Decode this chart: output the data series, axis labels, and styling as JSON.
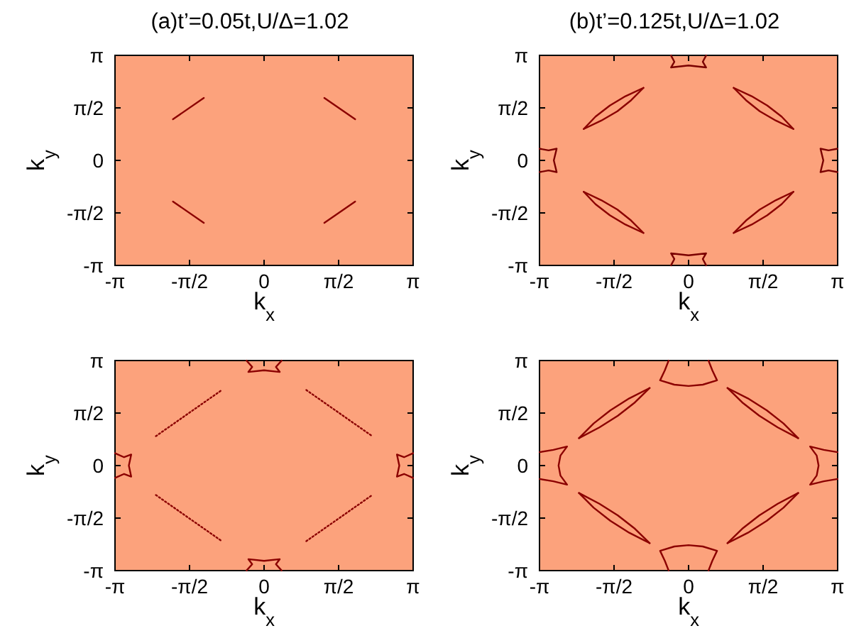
{
  "chart_data": [
    {
      "type": "line",
      "title": "(a)t’=0.05t,U/Δ=1.02",
      "xlabel": "k$_{x}$",
      "ylabel": "k$_{y}$",
      "xlim": [
        -3.1416,
        3.1416
      ],
      "ylim": [
        -3.1416,
        3.1416
      ],
      "xticks": [
        {
          "value": -3.1416,
          "label": "-π"
        },
        {
          "value": -1.5708,
          "label": "-π/2"
        },
        {
          "value": 0,
          "label": "0"
        },
        {
          "value": 1.5708,
          "label": "π/2"
        },
        {
          "value": 3.1416,
          "label": "π"
        }
      ],
      "yticks": [
        {
          "value": -3.1416,
          "label": "-π"
        },
        {
          "value": -1.5708,
          "label": "-π/2"
        },
        {
          "value": 0,
          "label": "0"
        },
        {
          "value": 1.5708,
          "label": "π/2"
        },
        {
          "value": 3.1416,
          "label": "π"
        }
      ],
      "series": [
        {
          "color": "#8b0000",
          "x": [
            -1.92,
            -1.27
          ],
          "values": [
            1.23,
            1.87
          ]
        },
        {
          "color": "#8b0000",
          "x": [
            1.27,
            1.92
          ],
          "values": [
            1.87,
            1.23
          ]
        },
        {
          "color": "#8b0000",
          "x": [
            -1.92,
            -1.27
          ],
          "values": [
            -1.23,
            -1.87
          ]
        },
        {
          "color": "#8b0000",
          "x": [
            1.27,
            1.92
          ],
          "values": [
            -1.87,
            -1.23
          ]
        }
      ]
    },
    {
      "type": "line",
      "title": "(b)t’=0.125t,U/Δ=1.02",
      "xlabel": "k$_{x}$",
      "ylabel": "k$_{y}$",
      "xlim": [
        -3.1416,
        3.1416
      ],
      "ylim": [
        -3.1416,
        3.1416
      ],
      "xticks": [
        {
          "value": -3.1416,
          "label": "-π"
        },
        {
          "value": -1.5708,
          "label": "-π/2"
        },
        {
          "value": 0,
          "label": "0"
        },
        {
          "value": 1.5708,
          "label": "π/2"
        },
        {
          "value": 3.1416,
          "label": "π"
        }
      ],
      "yticks": [
        {
          "value": -3.1416,
          "label": "-π"
        },
        {
          "value": -1.5708,
          "label": "-π/2"
        },
        {
          "value": 0,
          "label": "0"
        },
        {
          "value": 1.5708,
          "label": "π/2"
        },
        {
          "value": 3.1416,
          "label": "π"
        }
      ],
      "series": [
        {
          "color": "#8b0000",
          "x": [
            -2.21,
            -1.96,
            -1.66,
            -1.33,
            -0.95
          ],
          "values": [
            0.94,
            1.31,
            1.64,
            1.92,
            2.17
          ]
        },
        {
          "color": "#8b0000",
          "x": [
            -2.21,
            -1.84,
            -1.5,
            -1.21,
            -0.95
          ],
          "values": [
            0.94,
            1.19,
            1.47,
            1.8,
            2.17
          ]
        },
        {
          "color": "#8b0000",
          "x": [
            0.95,
            1.33,
            1.66,
            1.96,
            2.21
          ],
          "values": [
            2.17,
            1.92,
            1.64,
            1.31,
            0.94
          ]
        },
        {
          "color": "#8b0000",
          "x": [
            0.95,
            1.21,
            1.5,
            1.84,
            2.21
          ],
          "values": [
            2.17,
            1.8,
            1.47,
            1.19,
            0.94
          ]
        },
        {
          "color": "#8b0000",
          "x": [
            -2.21,
            -1.96,
            -1.66,
            -1.33,
            -0.95
          ],
          "values": [
            -0.94,
            -1.31,
            -1.64,
            -1.92,
            -2.17
          ]
        },
        {
          "color": "#8b0000",
          "x": [
            -2.21,
            -1.84,
            -1.5,
            -1.21,
            -0.95
          ],
          "values": [
            -0.94,
            -1.19,
            -1.47,
            -1.8,
            -2.17
          ]
        },
        {
          "color": "#8b0000",
          "x": [
            0.95,
            1.33,
            1.66,
            1.96,
            2.21
          ],
          "values": [
            -2.17,
            -1.92,
            -1.64,
            -1.31,
            -0.94
          ]
        },
        {
          "color": "#8b0000",
          "x": [
            0.95,
            1.21,
            1.5,
            1.84,
            2.21
          ],
          "values": [
            -2.17,
            -1.8,
            -1.47,
            -1.19,
            -0.94
          ]
        },
        {
          "color": "#7a0000",
          "x": [
            -0.37,
            -0.3,
            -0.37,
            0,
            0.37,
            0.3,
            0.37
          ],
          "values": [
            3.14,
            2.95,
            2.78,
            2.84,
            2.78,
            2.95,
            3.14
          ]
        },
        {
          "color": "#7a0000",
          "x": [
            -0.37,
            -0.3,
            -0.37,
            0,
            0.37,
            0.3,
            0.37
          ],
          "values": [
            -3.14,
            -2.95,
            -2.78,
            -2.84,
            -2.78,
            -2.95,
            -3.14
          ]
        },
        {
          "color": "#7a0000",
          "x": [
            -3.14,
            -2.95,
            -2.78,
            -2.84,
            -2.78,
            -2.95,
            -3.14
          ],
          "values": [
            0.35,
            0.3,
            0.35,
            0,
            -0.35,
            -0.3,
            -0.35
          ]
        },
        {
          "color": "#7a0000",
          "x": [
            3.14,
            2.95,
            2.78,
            2.84,
            2.78,
            2.95,
            3.14
          ],
          "values": [
            0.35,
            0.3,
            0.35,
            0,
            -0.35,
            -0.3,
            -0.35
          ]
        }
      ]
    },
    {
      "type": "line",
      "xlabel": "k$_{x}$",
      "ylabel": "k$_{y}$",
      "xlim": [
        -3.1416,
        3.1416
      ],
      "ylim": [
        -3.1416,
        3.1416
      ],
      "xticks": [
        {
          "value": -3.1416,
          "label": "-π"
        },
        {
          "value": -1.5708,
          "label": "-π/2"
        },
        {
          "value": 0,
          "label": "0"
        },
        {
          "value": 1.5708,
          "label": "π/2"
        },
        {
          "value": 3.1416,
          "label": "π"
        }
      ],
      "yticks": [
        {
          "value": -3.1416,
          "label": "-π"
        },
        {
          "value": -1.5708,
          "label": "-π/2"
        },
        {
          "value": 0,
          "label": "0"
        },
        {
          "value": 1.5708,
          "label": "π/2"
        },
        {
          "value": 3.1416,
          "label": "π"
        }
      ],
      "series": [
        {
          "color": "#8b0000",
          "line_style": "dotted",
          "x": [
            -2.28,
            -0.89
          ],
          "values": [
            0.88,
            2.26
          ]
        },
        {
          "color": "#8b0000",
          "line_style": "dotted",
          "x": [
            0.89,
            2.28
          ],
          "values": [
            2.26,
            0.88
          ]
        },
        {
          "color": "#8b0000",
          "line_style": "dotted",
          "x": [
            -2.28,
            -0.89
          ],
          "values": [
            -0.88,
            -2.26
          ]
        },
        {
          "color": "#8b0000",
          "line_style": "dotted",
          "x": [
            0.89,
            2.28
          ],
          "values": [
            -2.26,
            -0.88
          ]
        },
        {
          "color": "#8b0000",
          "x": [
            -0.37,
            -0.25,
            -0.33,
            0,
            0.33,
            0.25,
            0.37
          ],
          "values": [
            3.14,
            2.95,
            2.8,
            2.85,
            2.8,
            2.95,
            3.14
          ]
        },
        {
          "color": "#8b0000",
          "x": [
            -0.37,
            -0.25,
            -0.33,
            0,
            0.33,
            0.25,
            0.37
          ],
          "values": [
            -3.14,
            -2.95,
            -2.8,
            -2.85,
            -2.8,
            -2.95,
            -3.14
          ]
        },
        {
          "color": "#8b0000",
          "x": [
            -3.14,
            -2.95,
            -2.8,
            -2.85,
            -2.8,
            -2.95,
            -3.14
          ],
          "values": [
            0.37,
            0.25,
            0.33,
            0,
            -0.33,
            -0.25,
            -0.37
          ]
        },
        {
          "color": "#8b0000",
          "x": [
            3.14,
            2.95,
            2.8,
            2.85,
            2.8,
            2.95,
            3.14
          ],
          "values": [
            0.37,
            0.25,
            0.33,
            0,
            -0.33,
            -0.25,
            -0.37
          ]
        }
      ]
    },
    {
      "type": "line",
      "xlabel": "k$_{x}$",
      "ylabel": "k$_{y}$",
      "xlim": [
        -3.1416,
        3.1416
      ],
      "ylim": [
        -3.1416,
        3.1416
      ],
      "xticks": [
        {
          "value": -3.1416,
          "label": "-π"
        },
        {
          "value": -1.5708,
          "label": "-π/2"
        },
        {
          "value": 0,
          "label": "0"
        },
        {
          "value": 1.5708,
          "label": "π/2"
        },
        {
          "value": 3.1416,
          "label": "π"
        }
      ],
      "yticks": [
        {
          "value": -3.1416,
          "label": "-π"
        },
        {
          "value": -1.5708,
          "label": "-π/2"
        },
        {
          "value": 0,
          "label": "0"
        },
        {
          "value": 1.5708,
          "label": "π/2"
        },
        {
          "value": 3.1416,
          "label": "π"
        }
      ],
      "series": [
        {
          "color": "#8b0000",
          "x": [
            -2.31,
            -2.0,
            -1.65,
            -1.25,
            -0.82
          ],
          "values": [
            0.82,
            1.26,
            1.65,
            2.01,
            2.32
          ]
        },
        {
          "color": "#8b0000",
          "x": [
            -2.31,
            -1.88,
            -1.49,
            -1.13,
            -0.82
          ],
          "values": [
            0.82,
            1.14,
            1.49,
            1.89,
            2.32
          ]
        },
        {
          "color": "#8b0000",
          "x": [
            0.82,
            1.25,
            1.65,
            2.0,
            2.31
          ],
          "values": [
            2.32,
            2.01,
            1.65,
            1.26,
            0.82
          ]
        },
        {
          "color": "#8b0000",
          "x": [
            0.82,
            1.13,
            1.49,
            1.88,
            2.31
          ],
          "values": [
            2.32,
            1.89,
            1.49,
            1.14,
            0.82
          ]
        },
        {
          "color": "#8b0000",
          "x": [
            -2.31,
            -2.0,
            -1.65,
            -1.25,
            -0.82
          ],
          "values": [
            -0.82,
            -1.26,
            -1.65,
            -2.01,
            -2.32
          ]
        },
        {
          "color": "#8b0000",
          "x": [
            -2.31,
            -1.88,
            -1.49,
            -1.13,
            -0.82
          ],
          "values": [
            -0.82,
            -1.14,
            -1.49,
            -1.89,
            -2.32
          ]
        },
        {
          "color": "#8b0000",
          "x": [
            0.82,
            1.25,
            1.65,
            2.0,
            2.31
          ],
          "values": [
            -2.32,
            -2.01,
            -1.65,
            -1.26,
            -0.82
          ]
        },
        {
          "color": "#8b0000",
          "x": [
            0.82,
            1.13,
            1.49,
            1.88,
            2.31
          ],
          "values": [
            -2.32,
            -1.89,
            -1.49,
            -1.14,
            -0.82
          ]
        },
        {
          "color": "#8b0000",
          "x": [
            -0.42,
            -0.5,
            -0.6,
            -0.3,
            0,
            0.3,
            0.6,
            0.5,
            0.42
          ],
          "values": [
            3.14,
            2.85,
            2.55,
            2.42,
            2.38,
            2.42,
            2.55,
            2.85,
            3.14
          ]
        },
        {
          "color": "#8b0000",
          "x": [
            -0.42,
            -0.5,
            -0.6,
            -0.3,
            0,
            0.3,
            0.6,
            0.5,
            0.42
          ],
          "values": [
            -3.14,
            -2.85,
            -2.55,
            -2.42,
            -2.38,
            -2.42,
            -2.55,
            -2.85,
            -3.14
          ]
        },
        {
          "color": "#8b0000",
          "x": [
            -3.14,
            -2.85,
            -2.56,
            -2.7,
            -2.74,
            -2.7,
            -2.56,
            -2.85,
            -3.14
          ],
          "values": [
            0.4,
            0.47,
            0.57,
            0.3,
            0,
            -0.3,
            -0.57,
            -0.47,
            -0.4
          ]
        },
        {
          "color": "#8b0000",
          "x": [
            3.14,
            2.85,
            2.56,
            2.7,
            2.74,
            2.7,
            2.56,
            2.85,
            3.14
          ],
          "values": [
            0.4,
            0.47,
            0.57,
            0.3,
            0,
            -0.3,
            -0.57,
            -0.47,
            -0.4
          ]
        }
      ]
    }
  ]
}
